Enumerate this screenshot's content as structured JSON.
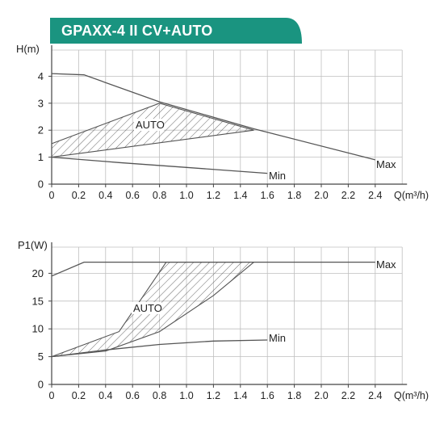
{
  "title": "GPAXX-4 II CV+AUTO",
  "colors": {
    "banner": "#1a9480",
    "grid": "#bfbfbf",
    "curve": "#555555",
    "text": "#222222"
  },
  "chart_data": [
    {
      "type": "line",
      "ylabel": "H(m)",
      "xlabel": "Q(m³/h)",
      "xlim": [
        0,
        2.6
      ],
      "ylim": [
        0,
        5
      ],
      "x_ticks": [
        "0",
        "0.2",
        "0.4",
        "0.6",
        "0.8",
        "1.0",
        "1.2",
        "1.4",
        "1.6",
        "1.8",
        "2.0",
        "2.2",
        "2.4"
      ],
      "y_ticks": [
        "0",
        "1",
        "2",
        "3",
        "4"
      ],
      "grid": true,
      "series": [
        {
          "name": "Max",
          "points": [
            [
              0,
              4.1
            ],
            [
              0.24,
              4.05
            ],
            [
              0.8,
              3.05
            ],
            [
              1.5,
              2.05
            ],
            [
              2.4,
              0.9
            ]
          ]
        },
        {
          "name": "Min",
          "points": [
            [
              0,
              1.0
            ],
            [
              0.5,
              0.8
            ],
            [
              1.0,
              0.62
            ],
            [
              1.6,
              0.4
            ]
          ]
        }
      ],
      "auto_region": {
        "label": "AUTO",
        "upper": [
          [
            0,
            1.5
          ],
          [
            0.8,
            3.0
          ],
          [
            1.5,
            2.0
          ]
        ],
        "lower": [
          [
            0,
            1.0
          ],
          [
            1.5,
            2.0
          ]
        ]
      }
    },
    {
      "type": "line",
      "ylabel": "P1(W)",
      "xlabel": "Q(m³/h)",
      "xlim": [
        0,
        2.6
      ],
      "ylim": [
        0,
        25
      ],
      "x_ticks": [
        "0",
        "0.2",
        "0.4",
        "0.6",
        "0.8",
        "1.0",
        "1.2",
        "1.4",
        "1.6",
        "1.8",
        "2.0",
        "2.2",
        "2.4"
      ],
      "y_ticks": [
        "0",
        "5",
        "10",
        "15",
        "20"
      ],
      "grid": true,
      "series": [
        {
          "name": "Max",
          "points": [
            [
              0,
              19.5
            ],
            [
              0.24,
              22
            ],
            [
              2.4,
              22
            ]
          ]
        },
        {
          "name": "Min",
          "points": [
            [
              0,
              5
            ],
            [
              0.4,
              6.2
            ],
            [
              0.8,
              7.2
            ],
            [
              1.2,
              7.8
            ],
            [
              1.6,
              8
            ]
          ]
        }
      ],
      "auto_region": {
        "label": "AUTO",
        "boundaries": [
          [
            [
              0,
              5
            ],
            [
              0.5,
              9.5
            ],
            [
              0.85,
              22
            ]
          ],
          [
            [
              0,
              5
            ],
            [
              0.4,
              6.0
            ],
            [
              0.8,
              9.5
            ],
            [
              1.2,
              16
            ],
            [
              1.5,
              22
            ]
          ]
        ],
        "ceiling": [
          [
            0.85,
            22
          ],
          [
            1.42,
            22
          ]
        ]
      }
    }
  ]
}
